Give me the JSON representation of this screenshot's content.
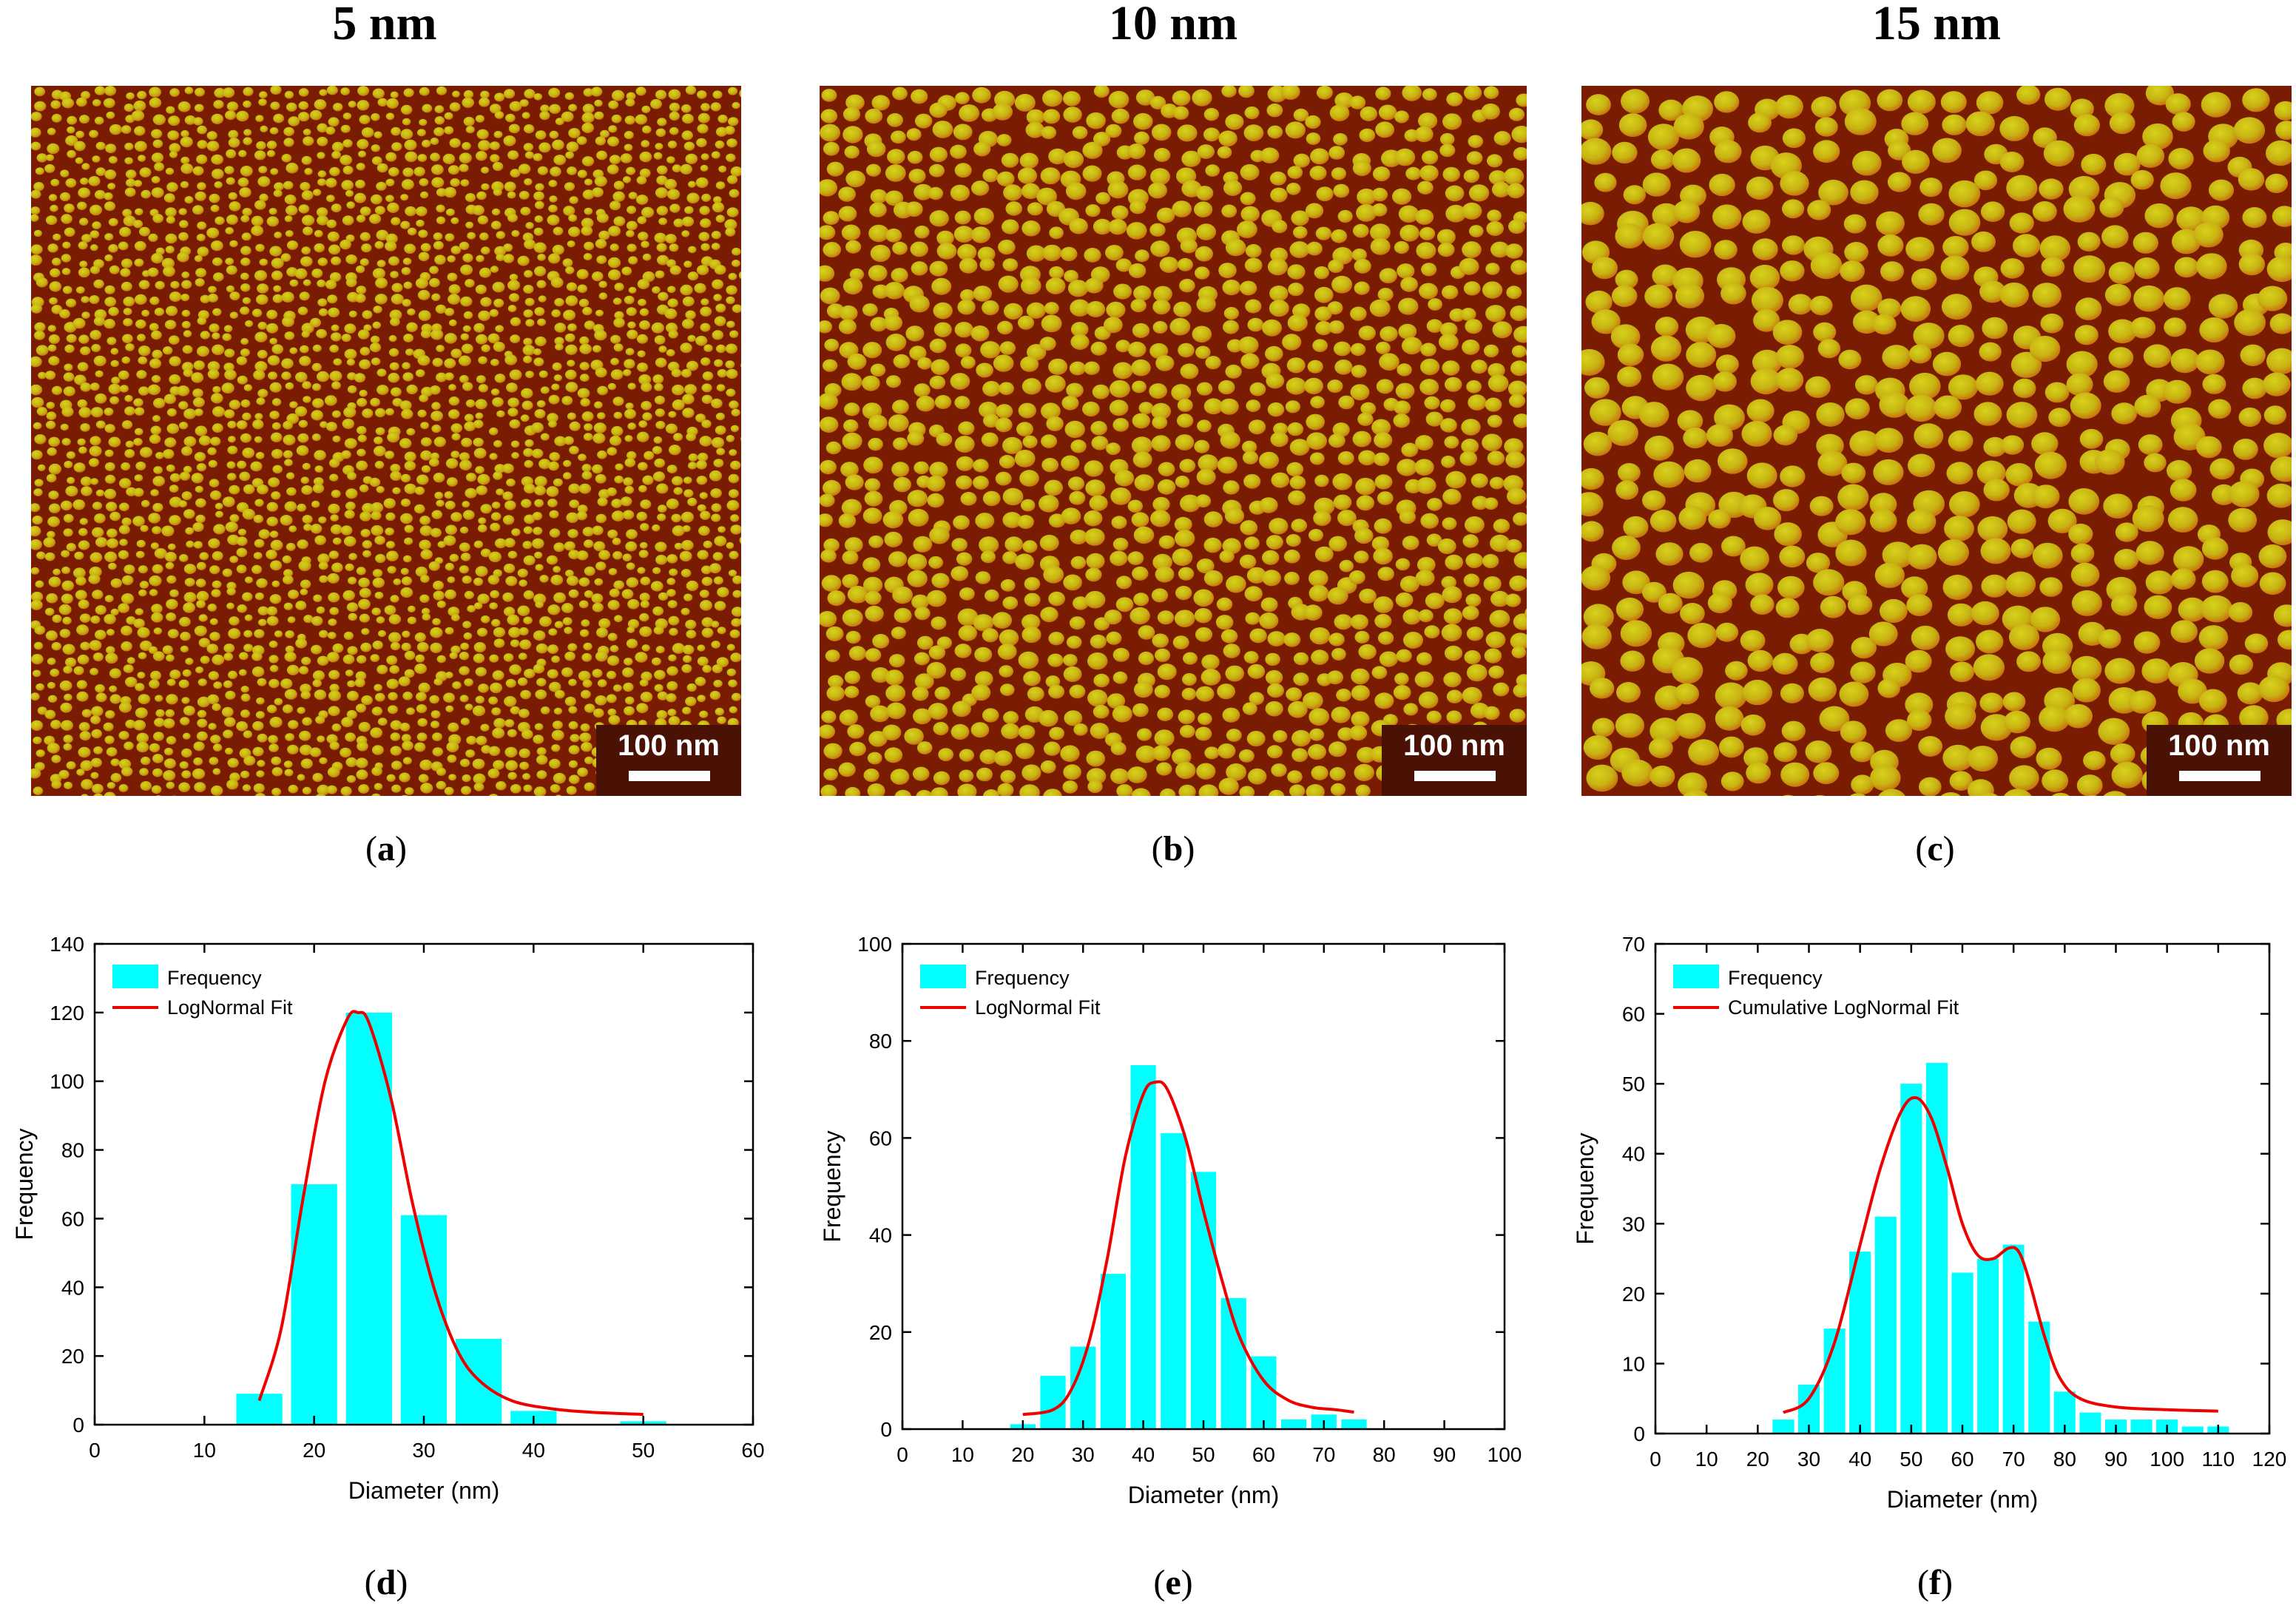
{
  "panels": [
    {
      "id": "a",
      "title": "5 nm",
      "label_open": "(",
      "label_letter": "a",
      "label_close": ")",
      "scale_bar": "100 nm"
    },
    {
      "id": "b",
      "title": "10 nm",
      "label_open": "(",
      "label_letter": "b",
      "label_close": ")",
      "scale_bar": "100 nm"
    },
    {
      "id": "c",
      "title": "15 nm",
      "label_open": "(",
      "label_letter": "c",
      "label_close": ")",
      "scale_bar": "100 nm"
    }
  ],
  "chart_labels": [
    {
      "label_open": "(",
      "label_letter": "d",
      "label_close": ")"
    },
    {
      "label_open": "(",
      "label_letter": "e",
      "label_close": ")"
    },
    {
      "label_open": "(",
      "label_letter": "f",
      "label_close": ")"
    }
  ],
  "colors": {
    "bar": "#00ffff",
    "fit": "#ee0000",
    "afm_dark": "#7a1c02",
    "afm_mid": "#c9680f",
    "afm_light": "#d8d21c"
  },
  "chart_data": [
    {
      "type": "bar",
      "title": "",
      "xlabel": "Diameter (nm)",
      "ylabel": "Frequency",
      "xlim": [
        0,
        60
      ],
      "ylim": [
        0,
        140
      ],
      "xticks": [
        0,
        10,
        20,
        30,
        40,
        50,
        60
      ],
      "yticks": [
        0,
        20,
        40,
        60,
        80,
        100,
        120,
        140
      ],
      "bin_width": 5,
      "bar_width_frac": 0.84,
      "bins": [
        15,
        20,
        25,
        30,
        35,
        40,
        45,
        50
      ],
      "values": [
        9,
        70,
        120,
        61,
        25,
        4,
        0,
        1
      ],
      "legend": {
        "position": "top-left",
        "bar_label": "Frequency",
        "fit_label": "LogNormal Fit"
      },
      "fit": {
        "x": [
          15,
          17,
          19,
          21,
          23,
          24,
          25,
          27,
          29,
          31,
          33,
          35,
          38,
          42,
          46,
          50
        ],
        "y": [
          7,
          28,
          66,
          100,
          118,
          120,
          117,
          95,
          64,
          39,
          22,
          13,
          7,
          4.5,
          3.5,
          3
        ]
      }
    },
    {
      "type": "bar",
      "title": "",
      "xlabel": "Diameter (nm)",
      "ylabel": "Frequency",
      "xlim": [
        0,
        100
      ],
      "ylim": [
        0,
        100
      ],
      "xticks": [
        0,
        10,
        20,
        30,
        40,
        50,
        60,
        70,
        80,
        90,
        100
      ],
      "yticks": [
        0,
        20,
        40,
        60,
        80,
        100
      ],
      "bin_width": 5,
      "bar_width_frac": 0.84,
      "bins": [
        20,
        25,
        30,
        35,
        40,
        45,
        50,
        55,
        60,
        65,
        70,
        75
      ],
      "values": [
        1,
        11,
        17,
        32,
        75,
        61,
        53,
        27,
        15,
        2,
        3,
        2
      ],
      "legend": {
        "position": "top-left",
        "bar_label": "Frequency",
        "fit_label": "LogNormal Fit"
      },
      "fit": {
        "x": [
          20,
          25,
          28,
          31,
          34,
          37,
          40,
          42,
          44,
          47,
          50,
          53,
          56,
          60,
          64,
          68,
          72,
          75
        ],
        "y": [
          3,
          4,
          8,
          18,
          35,
          56,
          69,
          71.5,
          70,
          60,
          45,
          31,
          19,
          10,
          6,
          4.5,
          4,
          3.5
        ]
      }
    },
    {
      "type": "bar",
      "title": "",
      "xlabel": "Diameter (nm)",
      "ylabel": "Frequency",
      "xlim": [
        0,
        120
      ],
      "ylim": [
        0,
        70
      ],
      "xticks": [
        0,
        10,
        20,
        30,
        40,
        50,
        60,
        70,
        80,
        90,
        100,
        110,
        120
      ],
      "yticks": [
        0,
        10,
        20,
        30,
        40,
        50,
        60,
        70
      ],
      "bin_width": 5,
      "bar_width_frac": 0.84,
      "bins": [
        25,
        30,
        35,
        40,
        45,
        50,
        55,
        60,
        65,
        70,
        75,
        80,
        85,
        90,
        95,
        100,
        105,
        110
      ],
      "values": [
        2,
        7,
        15,
        26,
        31,
        50,
        53,
        23,
        25,
        27,
        16,
        6,
        3,
        2,
        2,
        2,
        1,
        1
      ],
      "legend": {
        "position": "top-left",
        "bar_label": "Frequency",
        "fit_label": "Cumulative LogNormal Fit"
      },
      "fit": {
        "x": [
          25,
          30,
          35,
          40,
          44,
          48,
          51,
          54,
          57,
          60,
          63,
          66,
          69,
          71,
          73,
          76,
          79,
          83,
          90,
          100,
          110
        ],
        "y": [
          3,
          5,
          13,
          27,
          38,
          46,
          48,
          45,
          38,
          30,
          25.5,
          25,
          26.5,
          26,
          22,
          14,
          8,
          5,
          3.8,
          3.4,
          3.2
        ]
      }
    }
  ]
}
